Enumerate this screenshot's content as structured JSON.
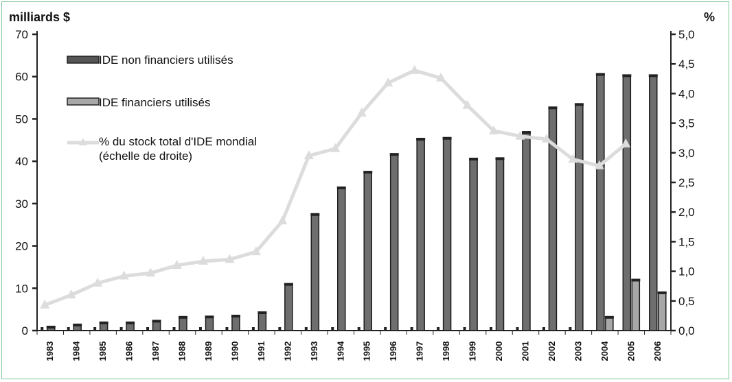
{
  "chart_data": {
    "type": "bar",
    "left_unit": "milliards $",
    "right_unit": "%",
    "categories": [
      "1983",
      "1984",
      "1985",
      "1986",
      "1987",
      "1988",
      "1989",
      "1990",
      "1991",
      "1992",
      "1993",
      "1994",
      "1995",
      "1996",
      "1997",
      "1998",
      "1999",
      "2000",
      "2001",
      "2002",
      "2003",
      "2004",
      "2005",
      "2006"
    ],
    "left_ticks": [
      "0",
      "10",
      "20",
      "30",
      "40",
      "50",
      "60",
      "70"
    ],
    "right_ticks": [
      "0,0",
      "0,5",
      "1,0",
      "1,5",
      "2,0",
      "2,5",
      "3,0",
      "3,5",
      "4,0",
      "4,5",
      "5,0"
    ],
    "ylim": [
      0,
      70
    ],
    "y2lim": [
      0,
      5
    ],
    "series": [
      {
        "name": "IDE non financiers utilisés",
        "kind": "bar",
        "axis": "left",
        "color": "#6e6e6e",
        "values": [
          0.9,
          1.4,
          1.9,
          1.9,
          2.3,
          3.2,
          3.3,
          3.5,
          4.3,
          11.0,
          27.5,
          33.8,
          37.5,
          41.7,
          45.3,
          45.5,
          40.6,
          40.7,
          46.9,
          52.7,
          53.5,
          60.6,
          60.3,
          60.3
        ]
      },
      {
        "name": "IDE financiers utilisés",
        "kind": "bar",
        "axis": "left",
        "color": "#a8a8a8",
        "values": [
          null,
          null,
          null,
          null,
          null,
          null,
          null,
          null,
          null,
          null,
          null,
          null,
          null,
          null,
          null,
          null,
          null,
          null,
          null,
          null,
          null,
          3.2,
          12.0,
          9.0
        ]
      },
      {
        "name": "% du stock total d'IDE mondial",
        "kind": "line",
        "axis": "right",
        "color": "#dcdcdc",
        "values": [
          0.43,
          0.6,
          0.8,
          0.92,
          0.97,
          1.1,
          1.17,
          1.2,
          1.33,
          1.85,
          2.95,
          3.07,
          3.67,
          4.18,
          4.39,
          4.26,
          3.8,
          3.37,
          3.28,
          3.23,
          2.89,
          2.78,
          3.15,
          null
        ]
      }
    ],
    "legend": {
      "items": [
        {
          "label": "IDE non financiers utilisés"
        },
        {
          "label": "IDE financiers utilisés"
        },
        {
          "label": "% du stock total d'IDE mondial",
          "sublabel": "(échelle de droite)"
        }
      ],
      "position": "top-left"
    },
    "grid": false
  }
}
